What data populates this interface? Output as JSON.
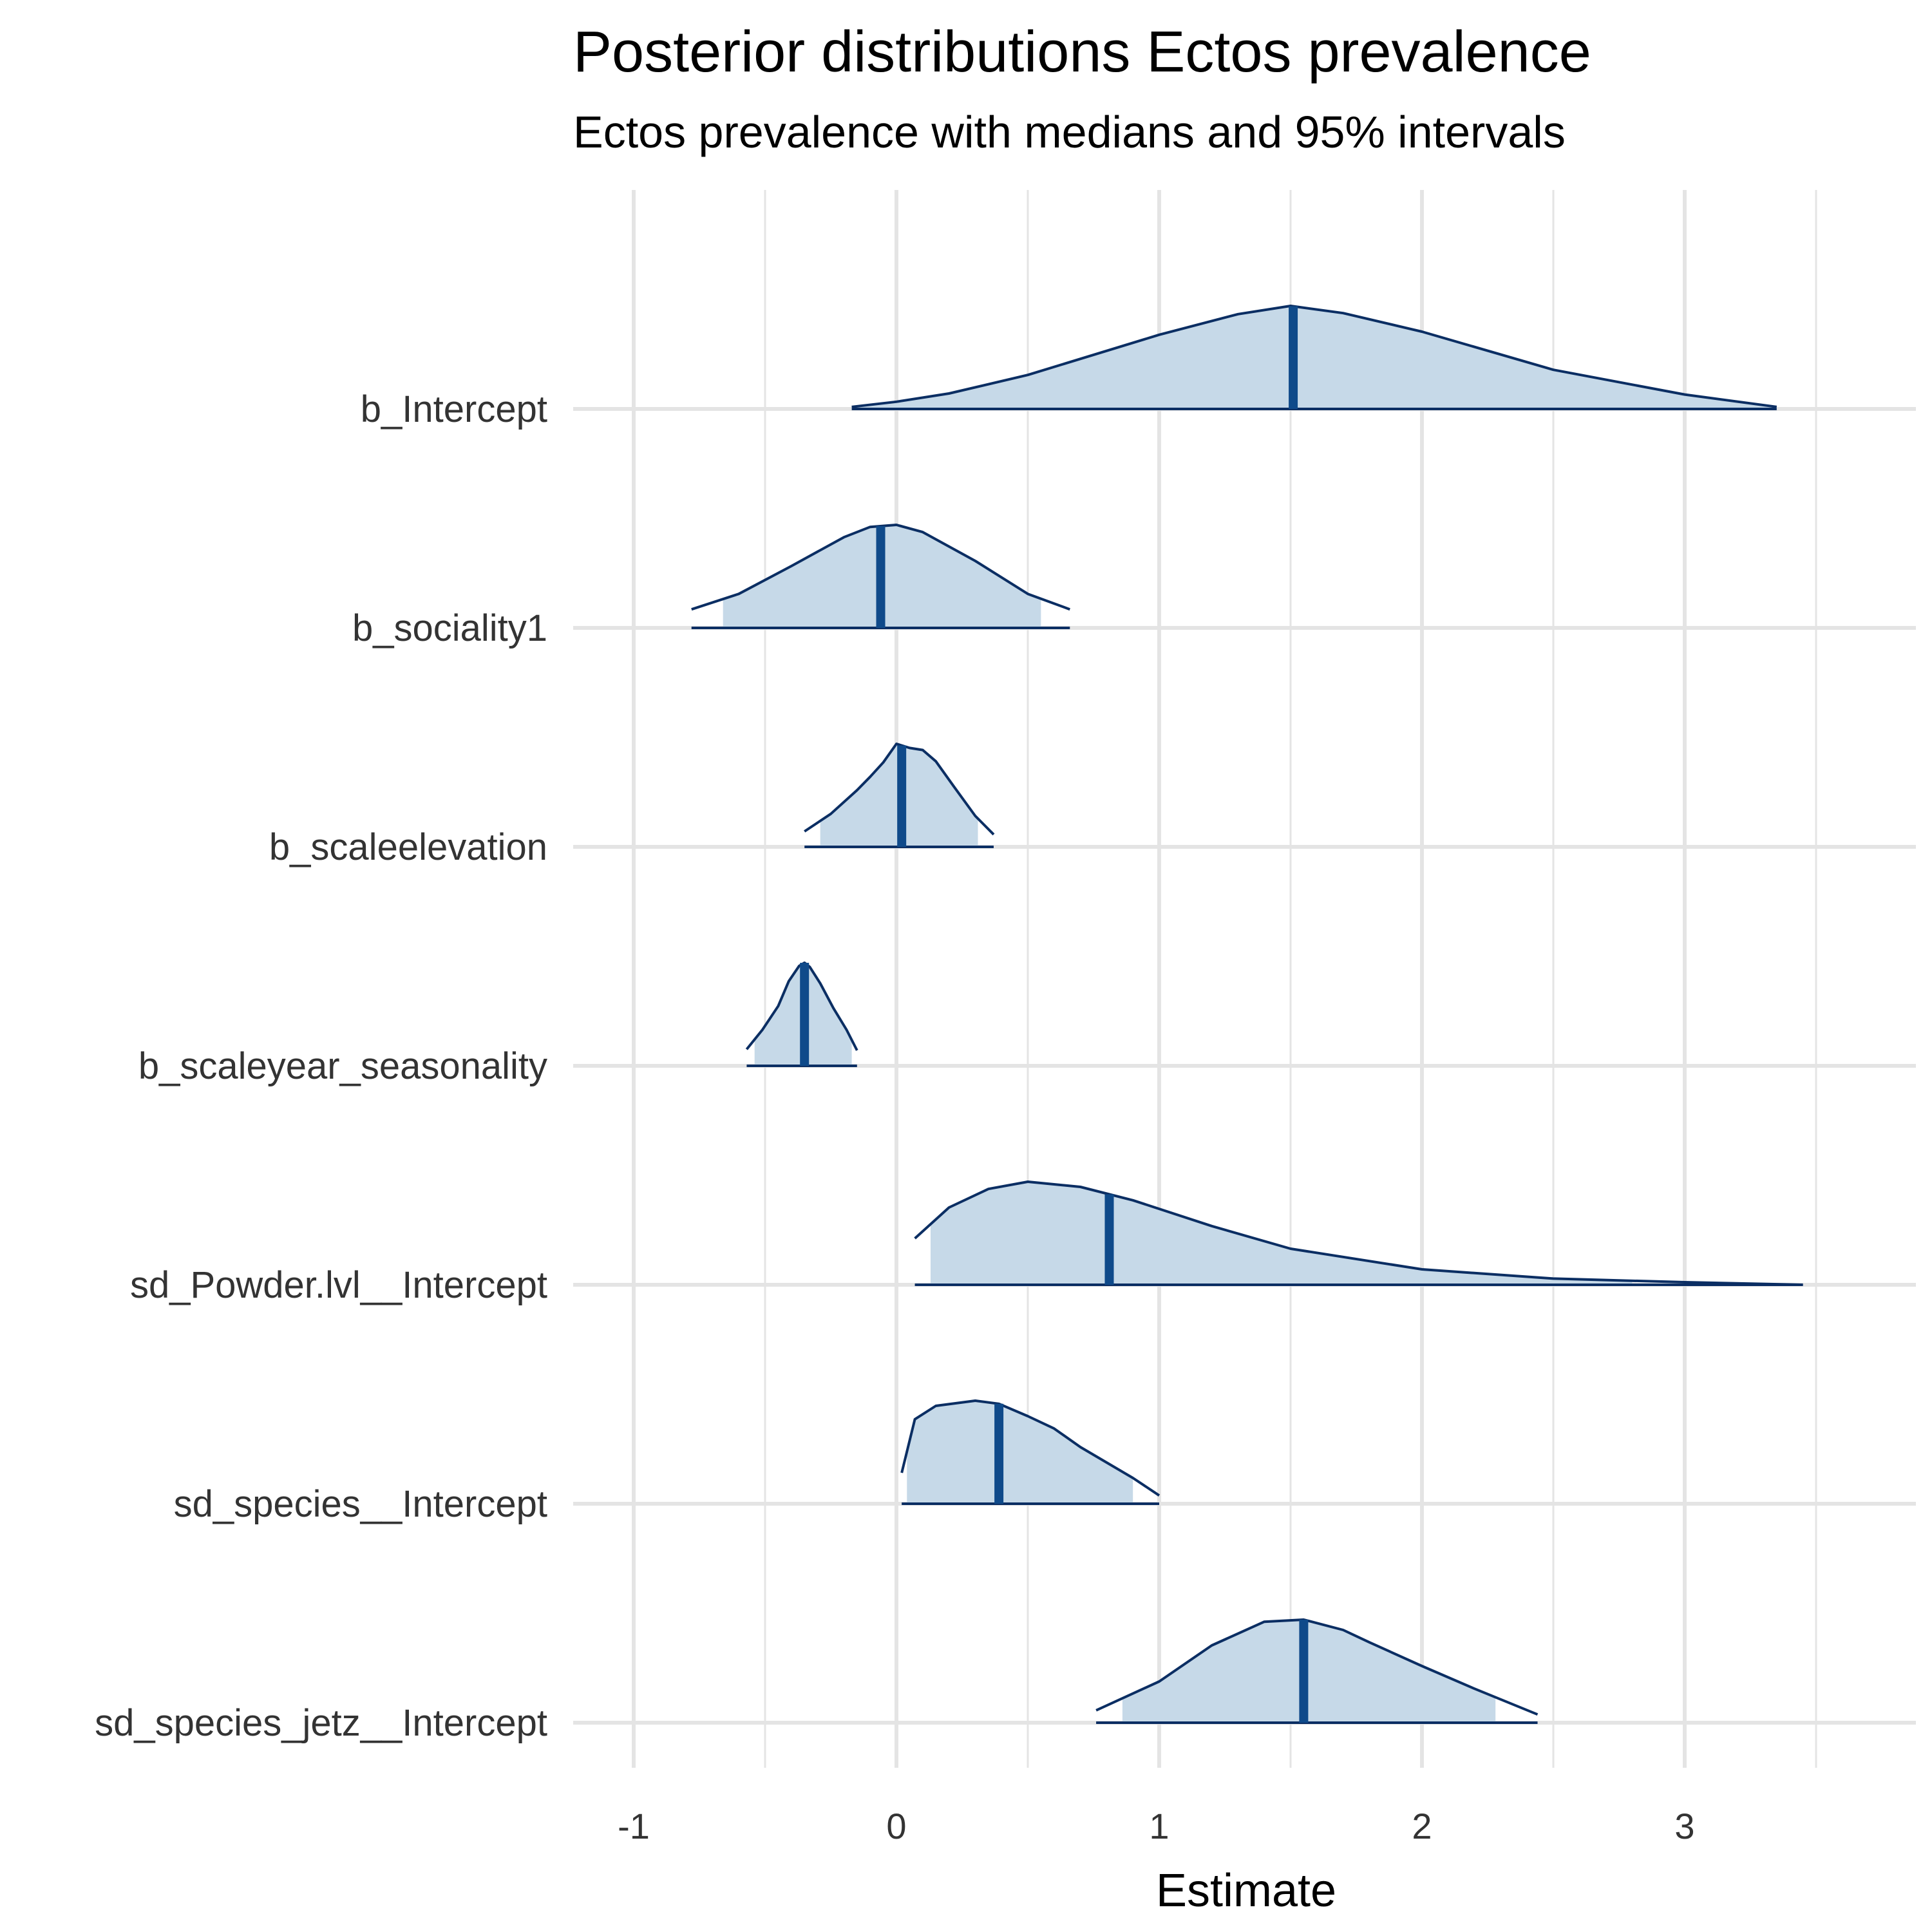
{
  "colors": {
    "fill": "#c6d9e8",
    "outline": "#0b2e63",
    "median": "#0f4a8a",
    "grid": "#e4e4e4",
    "text": "#333333"
  },
  "chart_data": {
    "type": "area",
    "title": "Posterior distributions Ectos prevalence",
    "subtitle": "Ectos prevalence with medians and 95% intervals",
    "xlabel": "Estimate",
    "ylabel": "",
    "xlim": [
      -1.0,
      3.8
    ],
    "x_ticks": [
      -1,
      0,
      1,
      2,
      3
    ],
    "x_tick_labels": [
      "-1",
      "0",
      "1",
      "2",
      "3"
    ],
    "grid": true,
    "legend": "none",
    "parameters": [
      {
        "name": "b_Intercept",
        "median": 1.51,
        "ci95": [
          -0.17,
          3.35
        ],
        "density_x": [
          -0.17,
          0.0,
          0.2,
          0.5,
          1.0,
          1.3,
          1.5,
          1.7,
          2.0,
          2.5,
          3.0,
          3.35
        ],
        "density_y": [
          0.02,
          0.07,
          0.15,
          0.33,
          0.72,
          0.92,
          1.0,
          0.93,
          0.75,
          0.38,
          0.14,
          0.02
        ]
      },
      {
        "name": "b_sociality1",
        "median": -0.06,
        "ci95": [
          -0.66,
          0.55
        ],
        "density_x": [
          -0.78,
          -0.6,
          -0.4,
          -0.2,
          -0.1,
          0.0,
          0.1,
          0.3,
          0.5,
          0.66
        ],
        "density_y": [
          0.18,
          0.33,
          0.6,
          0.88,
          0.98,
          1.0,
          0.93,
          0.65,
          0.33,
          0.18
        ]
      },
      {
        "name": "b_scaleelevation",
        "median": 0.02,
        "ci95": [
          -0.29,
          0.31
        ],
        "density_x": [
          -0.35,
          -0.25,
          -0.15,
          -0.1,
          -0.05,
          0.0,
          0.05,
          0.1,
          0.15,
          0.22,
          0.3,
          0.37
        ],
        "density_y": [
          0.15,
          0.32,
          0.55,
          0.68,
          0.82,
          1.0,
          0.96,
          0.94,
          0.83,
          0.58,
          0.3,
          0.12
        ]
      },
      {
        "name": "b_scaleyear_seasonality",
        "median": -0.35,
        "ci95": [
          -0.54,
          -0.17
        ],
        "density_x": [
          -0.57,
          -0.51,
          -0.45,
          -0.41,
          -0.37,
          -0.35,
          -0.33,
          -0.29,
          -0.24,
          -0.19,
          -0.15
        ],
        "density_y": [
          0.16,
          0.35,
          0.58,
          0.82,
          0.97,
          1.0,
          0.96,
          0.8,
          0.56,
          0.35,
          0.15
        ]
      },
      {
        "name": "sd_Powder.lvl__Intercept",
        "median": 0.81,
        "ci95": [
          0.13,
          2.8
        ],
        "density_x": [
          0.07,
          0.2,
          0.35,
          0.5,
          0.7,
          0.9,
          1.2,
          1.5,
          2.0,
          2.5,
          3.0,
          3.45
        ],
        "density_y": [
          0.45,
          0.75,
          0.93,
          1.0,
          0.95,
          0.82,
          0.57,
          0.35,
          0.15,
          0.06,
          0.025,
          0.0
        ]
      },
      {
        "name": "sd_species__Intercept",
        "median": 0.39,
        "ci95": [
          0.04,
          0.9
        ],
        "density_x": [
          0.02,
          0.07,
          0.15,
          0.3,
          0.39,
          0.5,
          0.6,
          0.7,
          0.8,
          0.9,
          1.0
        ],
        "density_y": [
          0.3,
          0.82,
          0.95,
          1.0,
          0.97,
          0.85,
          0.73,
          0.55,
          0.4,
          0.25,
          0.08
        ]
      },
      {
        "name": "sd_species_jetz__Intercept",
        "median": 1.55,
        "ci95": [
          0.86,
          2.28
        ],
        "density_x": [
          0.76,
          1.0,
          1.2,
          1.4,
          1.55,
          1.7,
          1.8,
          2.0,
          2.2,
          2.44
        ],
        "density_y": [
          0.12,
          0.4,
          0.75,
          0.98,
          1.0,
          0.9,
          0.78,
          0.55,
          0.33,
          0.08
        ]
      }
    ]
  }
}
